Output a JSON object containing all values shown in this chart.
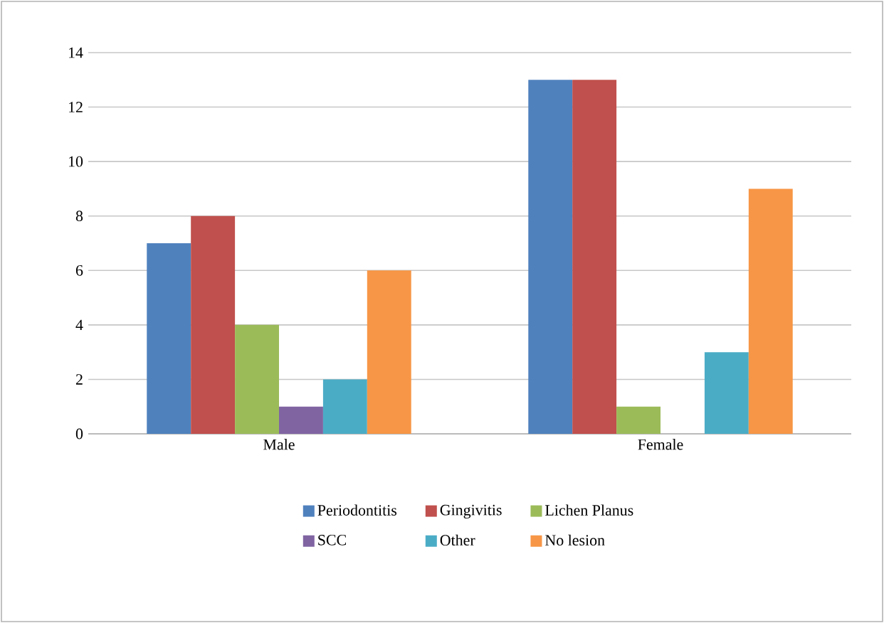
{
  "chart_data": {
    "type": "bar",
    "categories": [
      "Male",
      "Female"
    ],
    "series": [
      {
        "name": "Periodontitis",
        "color": "#4f81bd",
        "values": [
          7,
          13
        ]
      },
      {
        "name": "Gingivitis",
        "color": "#c0504d",
        "values": [
          8,
          13
        ]
      },
      {
        "name": "Lichen Planus",
        "color": "#9bbb59",
        "values": [
          4,
          1
        ]
      },
      {
        "name": "SCC",
        "color": "#8064a2",
        "values": [
          1,
          0
        ]
      },
      {
        "name": "Other",
        "color": "#4bacc6",
        "values": [
          2,
          3
        ]
      },
      {
        "name": "No lesion",
        "color": "#f79646",
        "values": [
          6,
          9
        ]
      }
    ],
    "ylim": [
      0,
      14
    ],
    "yticks": [
      0,
      2,
      4,
      6,
      8,
      10,
      12,
      14
    ],
    "grid": "y",
    "legend": "bottom"
  }
}
